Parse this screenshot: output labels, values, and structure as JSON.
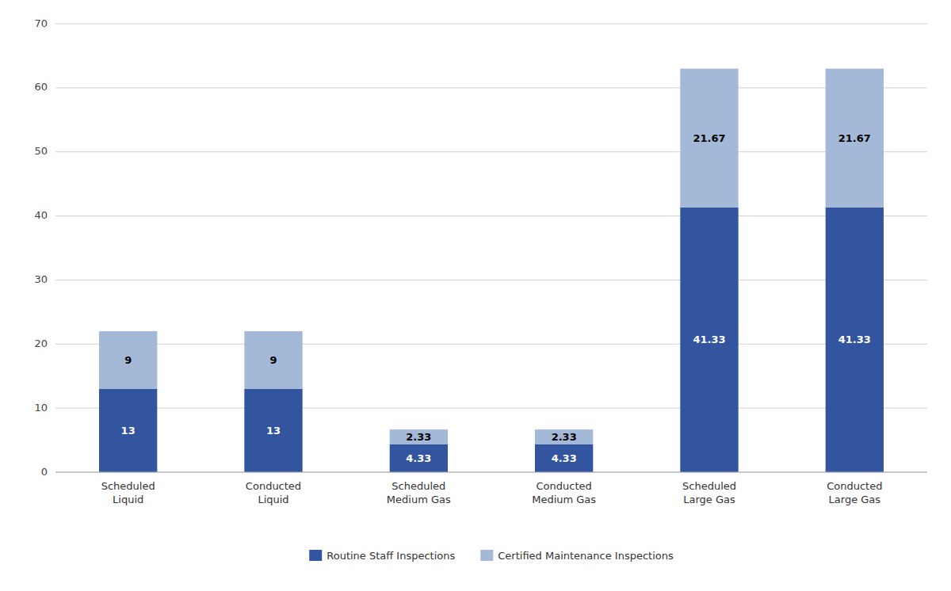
{
  "chart_data": {
    "type": "bar",
    "stacked": true,
    "categories": [
      "Scheduled\nLiquid",
      "Conducted\nLiquid",
      "Scheduled\nMedium Gas",
      "Conducted\nMedium Gas",
      "Scheduled\nLarge Gas",
      "Conducted\nLarge Gas"
    ],
    "series": [
      {
        "name": "Routine Staff Inspections",
        "color": "#3355A0",
        "values": [
          13,
          13,
          4.33,
          4.33,
          41.33,
          41.33
        ]
      },
      {
        "name": "Certified Maintenance Inspections",
        "color": "#A4B8D8",
        "values": [
          9,
          9,
          2.33,
          2.33,
          21.67,
          21.67
        ]
      }
    ],
    "ylim": [
      0,
      70
    ],
    "yticks": [
      0,
      10,
      20,
      30,
      40,
      50,
      60,
      70
    ],
    "grid": true,
    "legend": "bottom",
    "data_labels": true
  }
}
